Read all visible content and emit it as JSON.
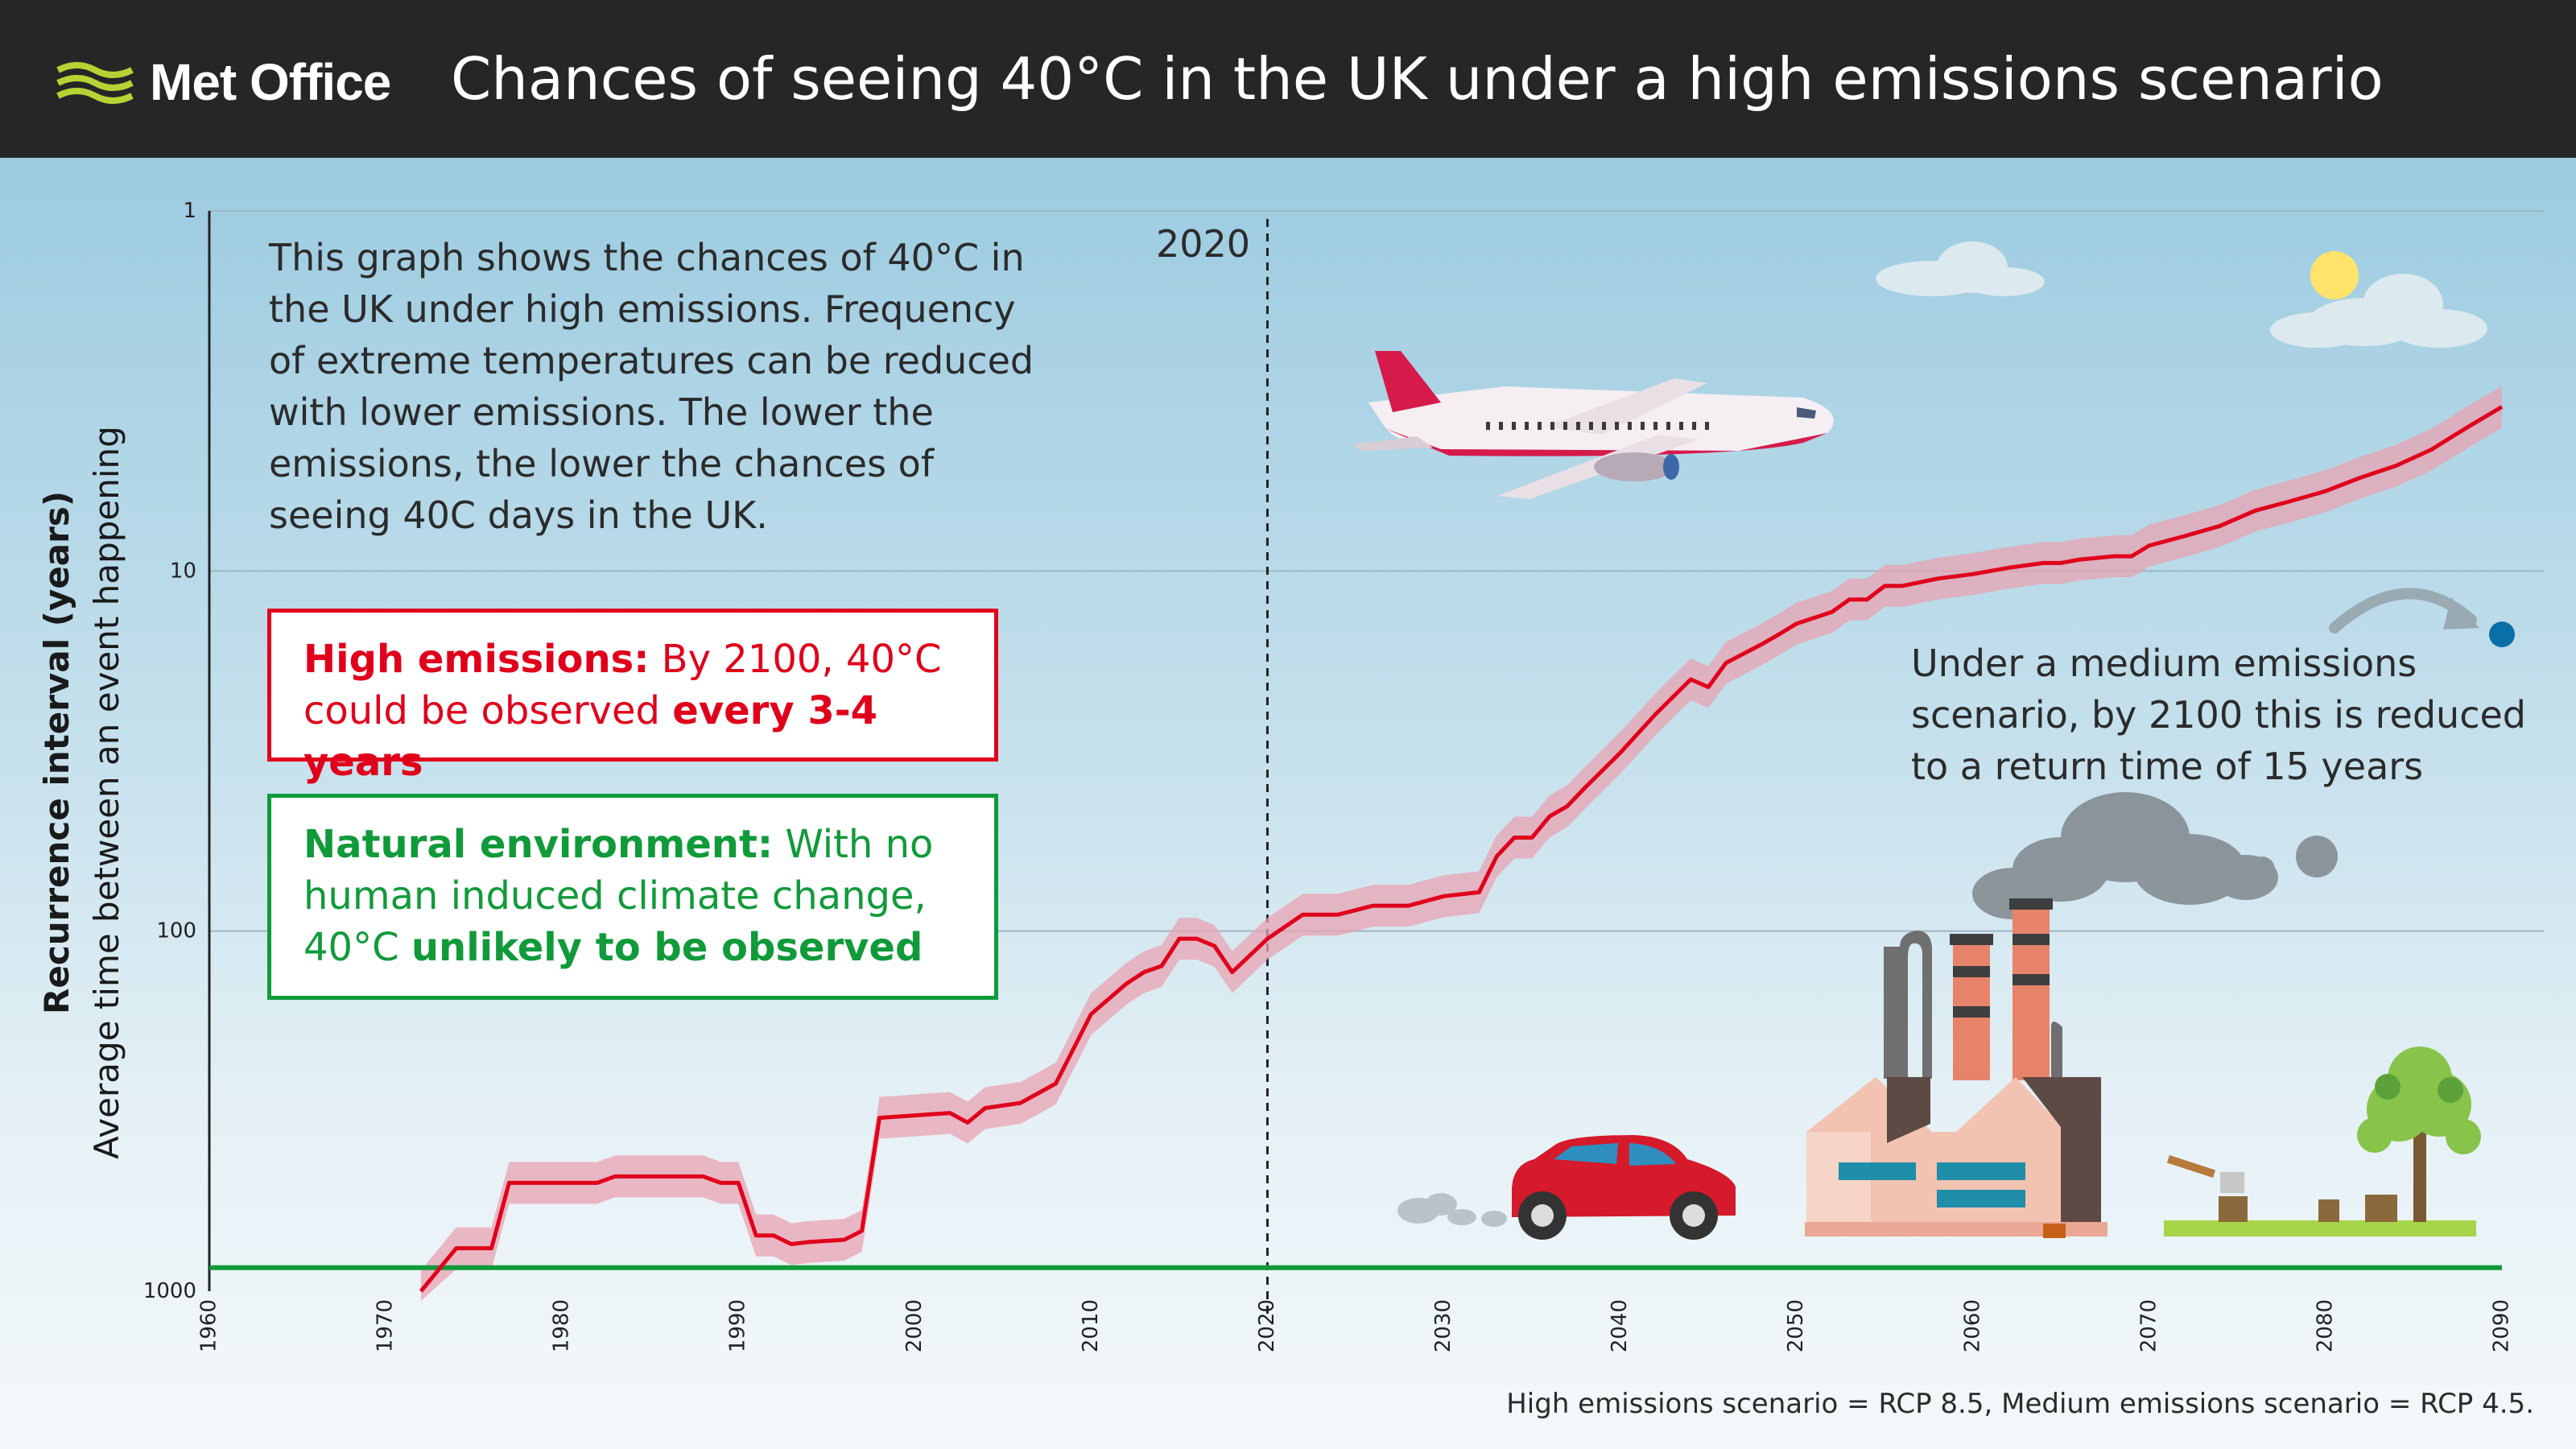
{
  "header": {
    "logo_text": "Met Office",
    "title": "Chances of seeing 40°C in the UK under a high emissions scenario"
  },
  "intro_text": "This graph shows the chances of 40°C in the UK under high emissions. Frequency of extreme temperatures can be reduced with lower emissions. The lower the emissions, the lower the chances of seeing 40C days in the UK.",
  "high_box": {
    "label": "High emissions:",
    "text_a": " By 2100, 40°C could be observed ",
    "text_b": "every 3-4 years"
  },
  "natural_box": {
    "label": "Natural environment:",
    "text_a": " With no human induced climate change, 40°C ",
    "text_b": "unlikely to be observed"
  },
  "medium_note": "Under a medium emissions scenario, by 2100 this is reduced to a return time of 15 years",
  "marker_label": "2020",
  "footnote": "High emissions scenario = RCP 8.5, Medium emissions scenario = RCP 4.5.",
  "colors": {
    "header_bg": "#262626",
    "logo_green": "#b5d334",
    "high_red": "#e0001b",
    "band_pink": "#e8a3b1",
    "natural_green": "#119a3a",
    "medium_dot": "#0a6fa8"
  },
  "chart_data": {
    "type": "line",
    "ylabel": "Recurrence interval (years)",
    "ylabel_sub": "Average time between an event happening",
    "xlabel": "",
    "x_ticks": [
      1960,
      1970,
      1980,
      1990,
      2000,
      2010,
      2020,
      2030,
      2040,
      2050,
      2060,
      2070,
      2080,
      2090
    ],
    "y_ticks": [
      1,
      10,
      100,
      1000
    ],
    "y_scale": "log",
    "y_inverted": true,
    "xlim": [
      1960,
      2090
    ],
    "ylim": [
      1000,
      1
    ],
    "grid": true,
    "vertical_marker": 2020,
    "series": [
      {
        "name": "High emissions",
        "color": "#e0001b",
        "x": [
          1972,
          1974,
          1976,
          1977,
          1982,
          1983,
          1988,
          1989,
          1990,
          1991,
          1992,
          1993,
          1994,
          1996,
          1997,
          1998,
          2002,
          2003,
          2004,
          2006,
          2008,
          2010,
          2012,
          2013,
          2014,
          2015,
          2016,
          2017,
          2018,
          2020,
          2022,
          2024,
          2026,
          2028,
          2030,
          2032,
          2033,
          2034,
          2035,
          2036,
          2037,
          2038,
          2040,
          2042,
          2044,
          2045,
          2046,
          2048,
          2049,
          2050,
          2052,
          2053,
          2054,
          2055,
          2056,
          2058,
          2060,
          2062,
          2064,
          2065,
          2066,
          2068,
          2069,
          2070,
          2072,
          2074,
          2076,
          2078,
          2080,
          2082,
          2084,
          2086,
          2088,
          2090
        ],
        "y": [
          1000,
          760,
          760,
          500,
          500,
          480,
          480,
          500,
          500,
          700,
          700,
          740,
          730,
          720,
          680,
          330,
          320,
          340,
          310,
          300,
          265,
          170,
          140,
          130,
          125,
          105,
          105,
          110,
          130,
          105,
          90,
          90,
          85,
          85,
          80,
          78,
          62,
          55,
          55,
          48,
          45,
          40,
          32,
          25,
          20,
          21,
          18,
          16,
          15,
          14,
          13,
          12,
          12,
          11,
          11,
          10.5,
          10.2,
          9.8,
          9.5,
          9.5,
          9.3,
          9.1,
          9.1,
          8.5,
          8.0,
          7.5,
          6.8,
          6.4,
          6.0,
          5.5,
          5.1,
          4.6,
          4.0,
          3.5
        ]
      },
      {
        "name": "Natural environment",
        "color": "#119a3a",
        "x": [
          1960,
          2090
        ],
        "y": [
          860,
          860
        ]
      }
    ],
    "annotations": [
      {
        "label": "Medium emissions by 2100",
        "x": 2090,
        "y": 15
      }
    ]
  }
}
